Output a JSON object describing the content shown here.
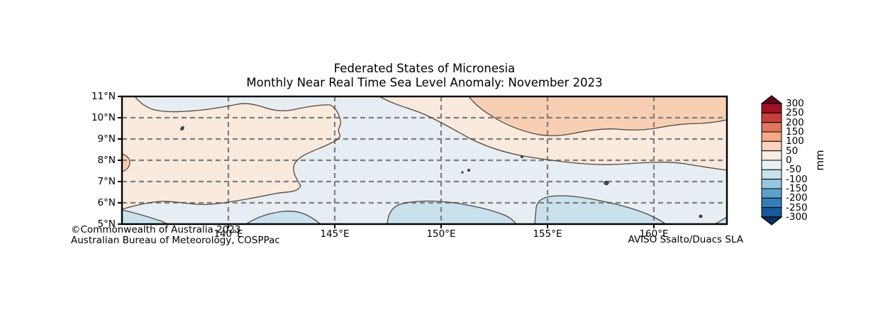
{
  "figure": {
    "title_line1": "Federated States of Micronesia",
    "title_line2": "Monthly Near Real Time Sea Level Anomaly: November 2023",
    "attribution_line1": "©Commonwealth of Australia 2023",
    "attribution_line2": "Australian Bureau of Meteorology, COSPPac",
    "data_credit": "AVISO Ssalto/Duacs SLA"
  },
  "chart_data": {
    "type": "heatmap",
    "subtype": "filled_contour_map",
    "title": "Federated States of Micronesia — Monthly Near Real Time Sea Level Anomaly: November 2023",
    "variable": "sea level anomaly",
    "unit": "mm",
    "x_axis": {
      "name": "longitude",
      "min": 135,
      "max": 163.4,
      "tick_values": [
        140,
        145,
        150,
        155,
        160
      ],
      "tick_labels": [
        "140°E",
        "145°E",
        "150°E",
        "155°E",
        "160°E"
      ]
    },
    "y_axis": {
      "name": "latitude",
      "min": 5,
      "max": 11,
      "tick_values": [
        11,
        10,
        9,
        8,
        7,
        6,
        5
      ],
      "tick_labels": [
        "11°N",
        "10°N",
        "9°N",
        "8°N",
        "7°N",
        "6°N",
        "5°N"
      ]
    },
    "grid": {
      "visible": true,
      "style": "dashed",
      "x_lines": [
        140,
        145,
        150,
        155,
        160
      ],
      "y_lines": [
        6,
        7,
        8,
        9,
        10
      ]
    },
    "colorbar": {
      "unit": "mm",
      "tick_labels": [
        "300",
        "250",
        "200",
        "150",
        "100",
        "50",
        "0",
        "-50",
        "-100",
        "-150",
        "-200",
        "-250",
        "-300"
      ],
      "levels_mm": [
        -300,
        -250,
        -200,
        -150,
        -100,
        -50,
        0,
        50,
        100,
        150,
        200,
        250,
        300
      ],
      "extend": "both",
      "colors_top_to_bottom": [
        "#67001f",
        "#a01228",
        "#c53f3d",
        "#df755d",
        "#f4a987",
        "#fbd2bc",
        "#f9ece4",
        "#e8f0f4",
        "#c7e0ed",
        "#97c7df",
        "#5ba2cb",
        "#337eb8",
        "#1a599b",
        "#053061"
      ]
    },
    "anomaly_regions": [
      {
        "area": "large western region ~135–149.5°E, ~6–10.7°N",
        "anomaly_mm": "0 to +50"
      },
      {
        "area": "north-eastern region ~152.5–163.4°E north of ~9.7°N",
        "anomaly_mm": "+50 to +100"
      },
      {
        "area": "small pocket on the western map edge near 135°E, 8°N",
        "anomaly_mm": "+50 to +100"
      },
      {
        "area": "eastern band ~150–163.4°E between ~8°N and ~9.8°N",
        "anomaly_mm": "0 to +50"
      },
      {
        "area": "central sea, far north-west sliver and remaining background",
        "anomaly_mm": "-50 to 0"
      },
      {
        "area": "southern patches near 5–6°N (~135–137.4°E, ~140.8–144.4°E, ~147.5–153.5°E, ~154.4–160.6°E, far SE corner)",
        "anomaly_mm": "-100 to -50"
      }
    ],
    "islands_shown": [
      "Yap area ~137.8°E 9.5°N",
      "Chuuk area ~151°E 7.4°N",
      "atoll ~153.8°E 8.2°N",
      "Pohnpei ~157.8°E 6.9°N",
      "Kosrae ~162.2°E 5.4°N"
    ]
  },
  "map_colors": {
    "band_0_to_50": "#faeadd",
    "band_minus50_to_0": "#e7eef3",
    "band_50_to_100": "#f9cfb4",
    "band_minus100_to_minus50": "#c9e0ed",
    "island": "#4a4a4a",
    "island_outline": "#2e2e2e",
    "contour_line": "#52463f",
    "gridline": "#7e7e7e",
    "border": "#000000"
  }
}
